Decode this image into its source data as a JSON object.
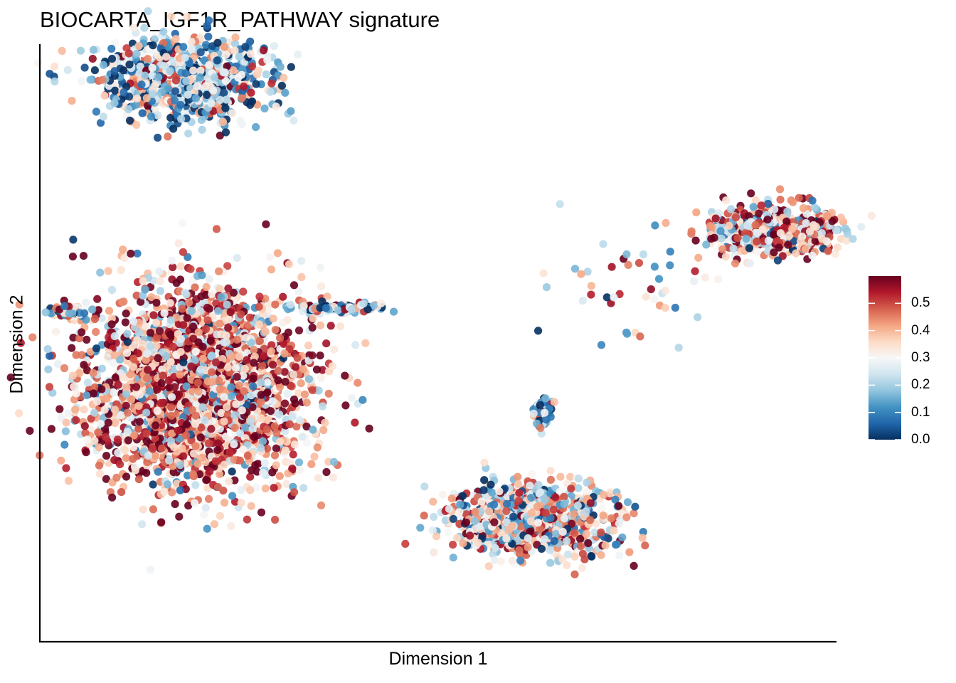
{
  "chart_data": {
    "type": "scatter",
    "title": "BIOCARTA_IGF1R_PATHWAY signature",
    "xlabel": "Dimension 1",
    "ylabel": "Dimension 2",
    "grid": false,
    "axis_ticks": "none",
    "legend": {
      "placement": "right",
      "type": "colorbar",
      "title": "",
      "range": [
        0.0,
        0.6
      ],
      "ticks": [
        "0.0",
        "0.1",
        "0.2",
        "0.3",
        "0.4",
        "0.5"
      ],
      "colors": [
        "#053061",
        "#2166ac",
        "#4393c3",
        "#92c5de",
        "#d1e5f0",
        "#f7f7f7",
        "#fddbc7",
        "#f4a582",
        "#d6604d",
        "#b2182b",
        "#67001f"
      ]
    },
    "clusters": [
      {
        "label": "upper-left cluster",
        "center": [
          -6.5,
          7.0
        ],
        "spread": [
          2.2,
          1.1
        ],
        "n": 900,
        "mean_score": 0.22
      },
      {
        "label": "large left cluster",
        "center": [
          -6.3,
          -1.2
        ],
        "spread": [
          3.0,
          2.6
        ],
        "n": 2600,
        "mean_score": 0.42
      },
      {
        "label": "small far-left cluster",
        "center": [
          -9.6,
          0.8
        ],
        "spread": [
          0.5,
          0.15
        ],
        "n": 60,
        "mean_score": 0.3
      },
      {
        "label": "horizontal strand",
        "center": [
          -2.5,
          0.9
        ],
        "spread": [
          1.2,
          0.12
        ],
        "n": 120,
        "mean_score": 0.2
      },
      {
        "label": "right cluster",
        "center": [
          8.8,
          3.0
        ],
        "spread": [
          1.7,
          0.7
        ],
        "n": 600,
        "mean_score": 0.38
      },
      {
        "label": "small middle cluster",
        "center": [
          2.8,
          -1.8
        ],
        "spread": [
          0.3,
          0.4
        ],
        "n": 60,
        "mean_score": 0.18
      },
      {
        "label": "lower-middle cluster",
        "center": [
          2.5,
          -4.7
        ],
        "spread": [
          2.1,
          1.0
        ],
        "n": 900,
        "mean_score": 0.3
      },
      {
        "label": "scattered outliers",
        "center": [
          5.0,
          1.5
        ],
        "spread": [
          2.5,
          1.5
        ],
        "n": 45,
        "mean_score": 0.35
      }
    ]
  }
}
